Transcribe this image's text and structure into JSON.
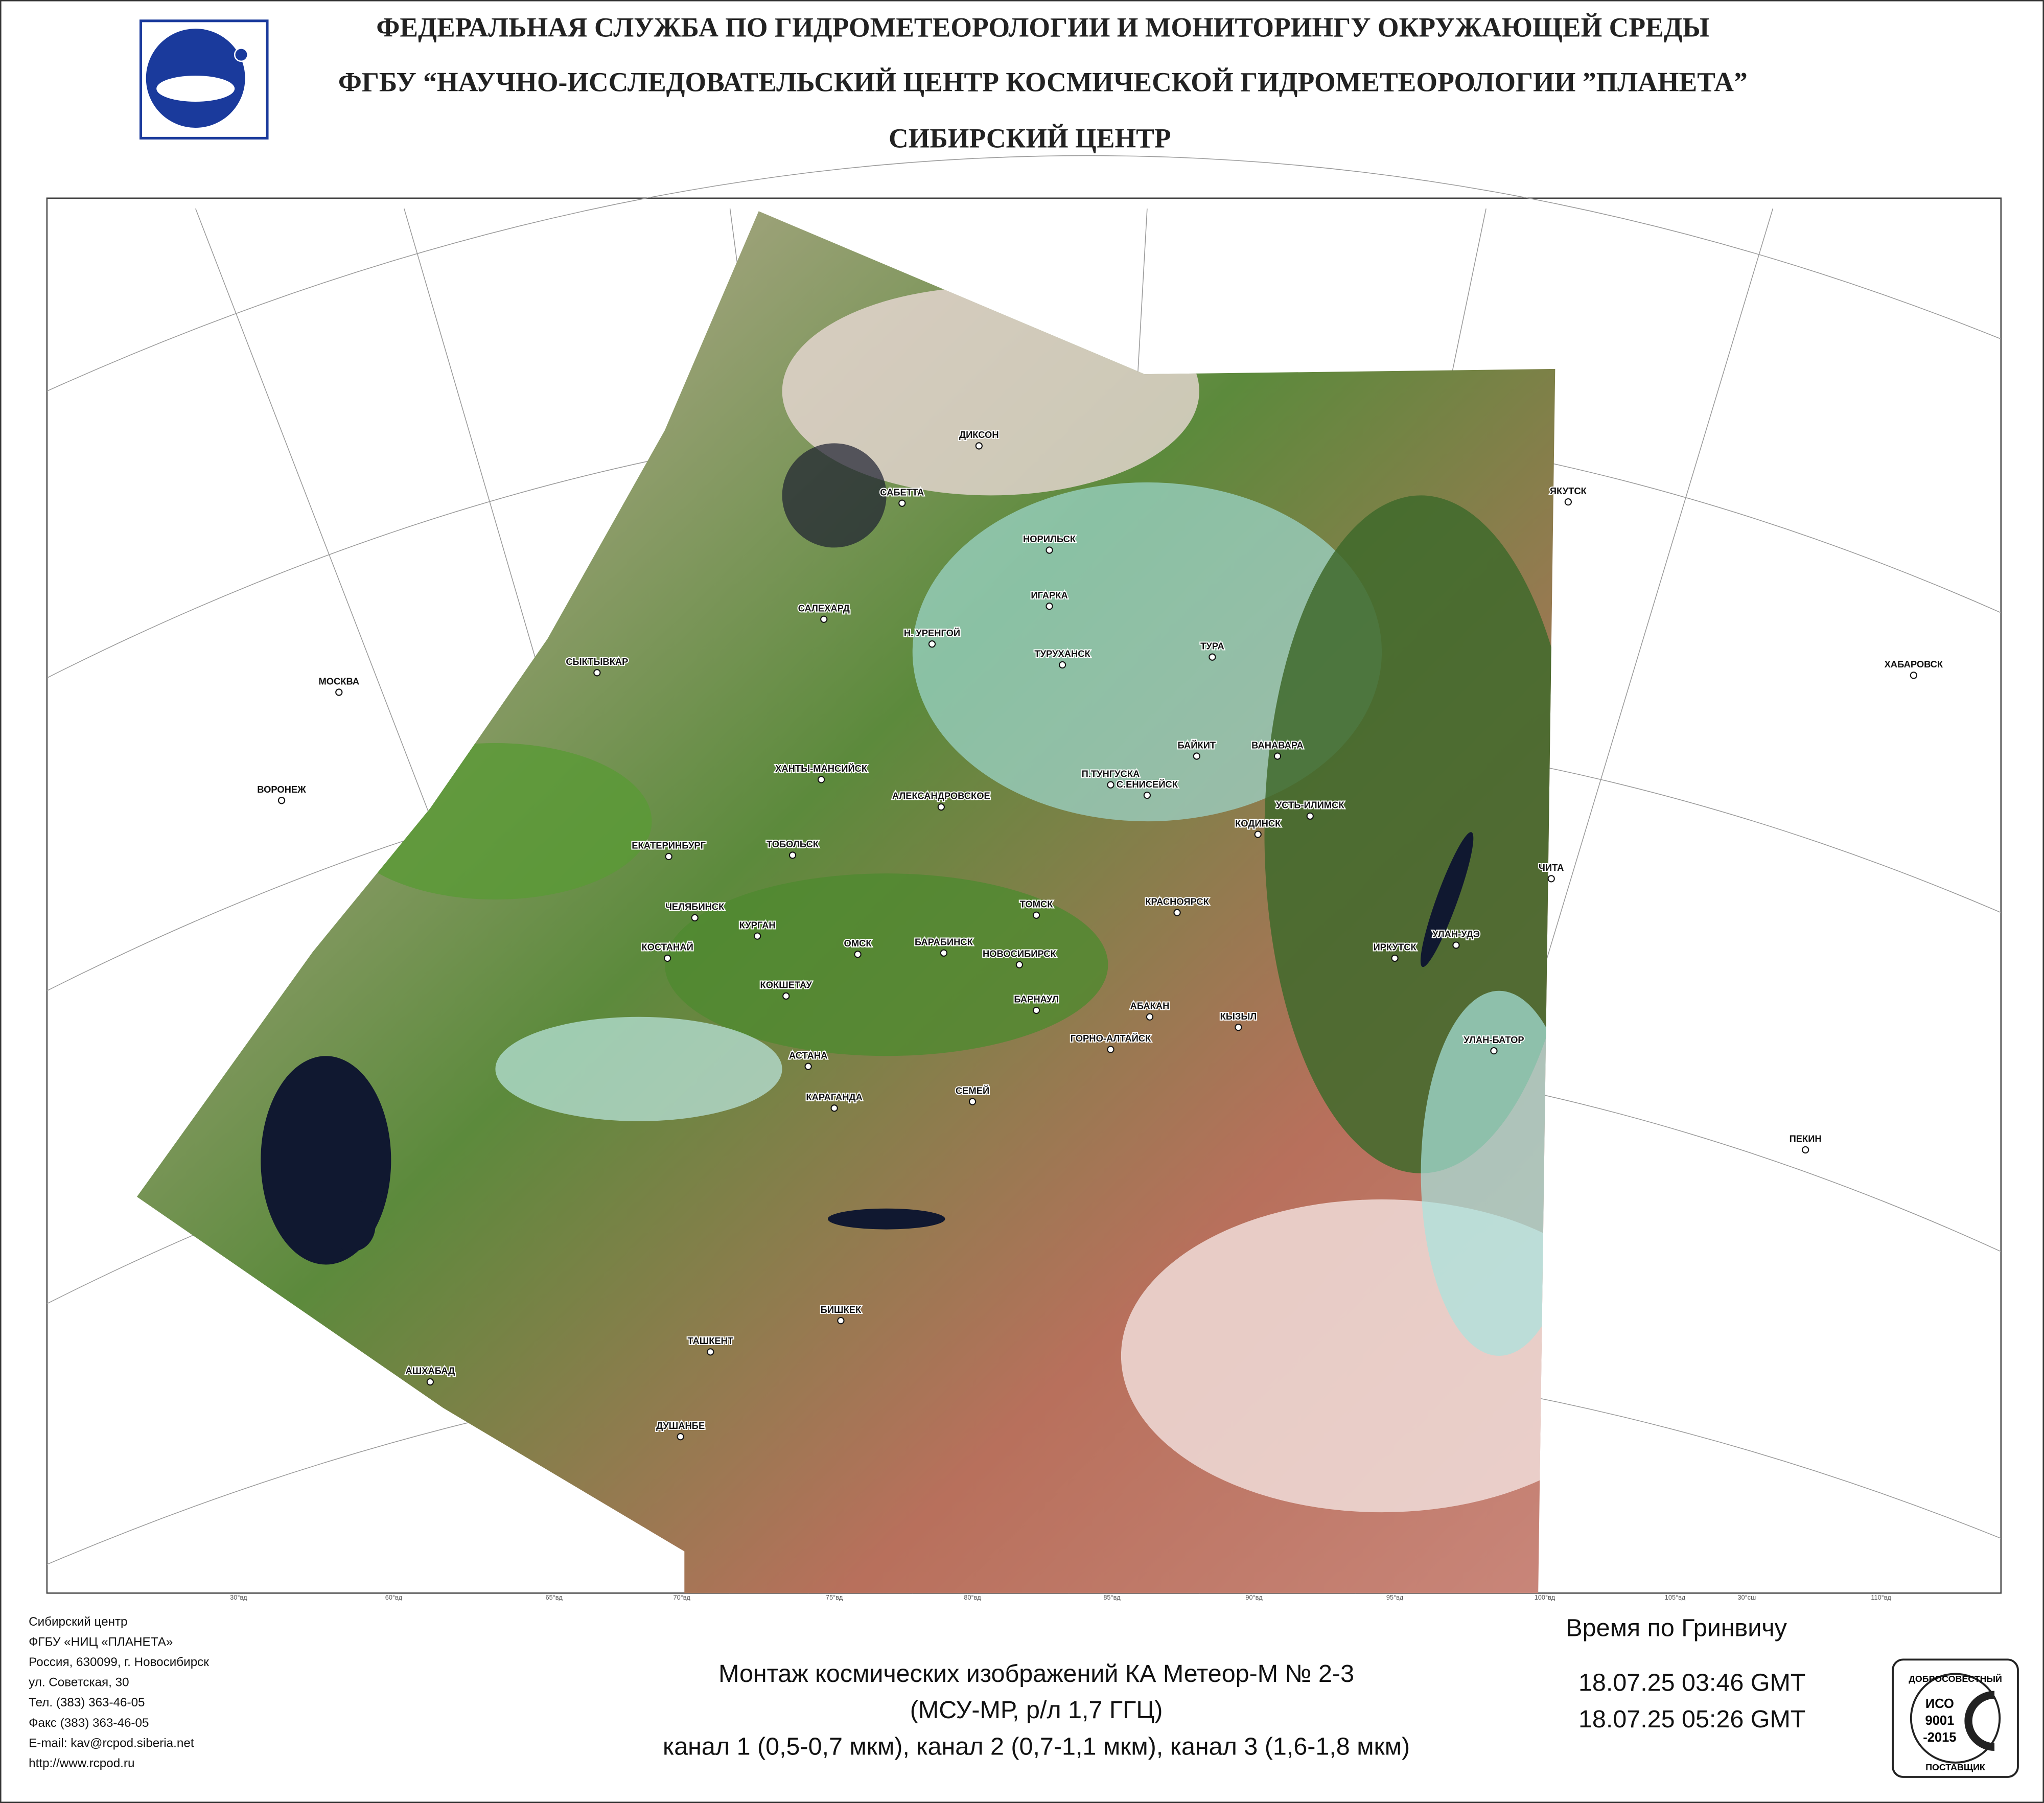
{
  "header": {
    "line1": "ФЕДЕРАЛЬНАЯ СЛУЖБА ПО ГИДРОМЕТЕОРОЛОГИИ И МОНИТОРИНГУ ОКРУЖАЮЩЕЙ СРЕДЫ",
    "line2": "ФГБУ “НАУЧНО-ИССЛЕДОВАТЕЛЬСКИЙ ЦЕНТР КОСМИЧЕСКОЙ ГИДРОМЕТЕОРОЛОГИИ ”ПЛАНЕТА”",
    "line3": "СИБИРСКИЙ  ЦЕНТР"
  },
  "map": {
    "cities": [
      "ДИКСОН",
      "САБЕТТА",
      "ЯКУТСК",
      "НОРИЛЬСК",
      "ИГАРКА",
      "САЛЕХАРД",
      "Н. УРЕНГОЙ",
      "ТУРУХАНСК",
      "ТУРА",
      "СЫКТЫВКАР",
      "МОСКВА",
      "ХАБАРОВСК",
      "БАЙКИТ",
      "ВАНАВАРА",
      "ХАНТЫ-МАНСИЙСК",
      "П.ТУНГУСКА",
      "С.ЕНИСЕЙСК",
      "ВОРОНЕЖ",
      "АЛЕКСАНДРОВСКОЕ",
      "УСТЬ-ИЛИМСК",
      "КОДИНСК",
      "ЕКАТЕРИНБУРГ",
      "ТОБОЛЬСК",
      "ЧИТА",
      "ЧЕЛЯБИНСК",
      "КРАСНОЯРСК",
      "ТОМСК",
      "КУРГАН",
      "ОМСК",
      "БАРАБИНСК",
      "НОВОСИБИРСК",
      "УЛАН-УДЭ",
      "ИРКУТСК",
      "КОСТАНАЙ",
      "КОКШЕТАУ",
      "БАРНАУЛ",
      "АБАКАН",
      "КЫЗЫЛ",
      "УЛАН-БАТОР",
      "ГОРНО-АЛТАЙСК",
      "АСТАНА",
      "СЕМЕЙ",
      "КАРАГАНДА",
      "ПЕКИН",
      "БИШКЕК",
      "ТАШКЕНТ",
      "АШХАБАД",
      "ДУШАНБЕ"
    ],
    "bottom_labels": [
      "30°вд",
      "60°вд",
      "65°вд",
      "70°вд",
      "75°вд",
      "80°вд",
      "85°вд",
      "90°вд",
      "95°вд",
      "100°вд",
      "105°вд",
      "30°сш",
      "110°вд"
    ]
  },
  "footer": {
    "contact": [
      "Сибирский центр",
      "ФГБУ «НИЦ «ПЛАНЕТА»",
      "Россия, 630099, г. Новосибирск",
      "ул. Советская, 30",
      "Тел. (383) 363-46-05",
      "Факс (383) 363-46-05",
      "E-mail: kav@rcpod.siberia.net",
      "http://www.rcpod.ru"
    ],
    "caption": [
      "Монтаж космических изображений КА Метеор-М № 2-3",
      "(МСУ-МР, р/л 1,7 ГГЦ)",
      "канал 1 (0,5-0,7 мкм), канал 2 (0,7-1,1 мкм), канал 3 (1,6-1,8 мкм)"
    ],
    "time_title": "Время по Гринвичу",
    "times": [
      "18.07.25    03:46 GMT",
      "18.07.25    05:26 GMT"
    ],
    "badge": {
      "top": "ДОБРОСОВЕСТНЫЙ",
      "iso": "ИСО",
      "num": "9001",
      "year": "-2015",
      "bottom": "ПОСТАВЩИК"
    }
  }
}
